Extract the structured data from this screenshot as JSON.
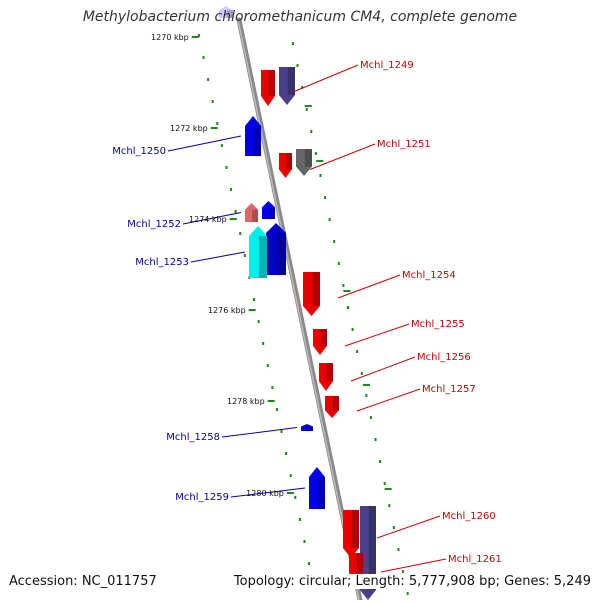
{
  "title": "Methylobacterium chloromethanicum CM4, complete genome",
  "footer": {
    "accession": "Accession: NC_011757",
    "topology": "Topology: circular; Length: 5,777,908 bp; Genes: 5,249"
  },
  "colors": {
    "backbone": "#888888",
    "tick": "#1a8a1a",
    "forward_label": "#cc0000",
    "reverse_label": "#0000aa"
  },
  "scale_ticks": [
    "1270 kbp",
    "1272 kbp",
    "1274 kbp",
    "1276 kbp",
    "1278 kbp",
    "1280 kbp"
  ],
  "genes": [
    {
      "name": "Mchl_1249",
      "strand": "forward",
      "color": "#ee0000"
    },
    {
      "name": "Mchl_1250",
      "strand": "reverse",
      "color": "#0000ee"
    },
    {
      "name": "Mchl_1251",
      "strand": "forward",
      "color": "#ee0000"
    },
    {
      "name": "Mchl_1252",
      "strand": "reverse",
      "color": "#dd6666"
    },
    {
      "name": "Mchl_1253",
      "strand": "reverse",
      "color": "#00eeee"
    },
    {
      "name": "Mchl_1254",
      "strand": "forward",
      "color": "#ee0000"
    },
    {
      "name": "Mchl_1255",
      "strand": "forward",
      "color": "#ee0000"
    },
    {
      "name": "Mchl_1256",
      "strand": "forward",
      "color": "#ee0000"
    },
    {
      "name": "Mchl_1257",
      "strand": "forward",
      "color": "#ee0000"
    },
    {
      "name": "Mchl_1258",
      "strand": "reverse",
      "color": "#0000ee"
    },
    {
      "name": "Mchl_1259",
      "strand": "reverse",
      "color": "#0000ee"
    },
    {
      "name": "Mchl_1260",
      "strand": "forward",
      "color": "#ee0000"
    },
    {
      "name": "Mchl_1261",
      "strand": "forward",
      "color": "#ee0000"
    }
  ]
}
